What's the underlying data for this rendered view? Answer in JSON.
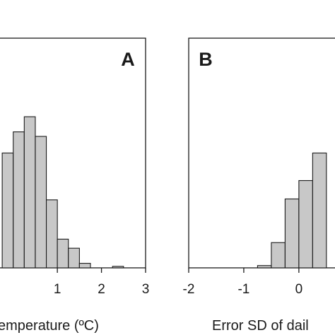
{
  "chart_data": [
    {
      "type": "bar",
      "panel_label": "A",
      "xlabel": "emperature (ºC)",
      "x_ticks": [
        "1",
        "2",
        "3"
      ],
      "x_tick_values": [
        1,
        2,
        3
      ],
      "bin_width": 0.25,
      "bin_starts": [
        -0.25,
        0.0,
        0.25,
        0.5,
        0.75,
        1.0,
        1.25,
        1.5,
        1.75,
        2.0,
        2.25,
        2.5
      ],
      "values": [
        76,
        90,
        100,
        87,
        45,
        19,
        13,
        3,
        0,
        0,
        1,
        0
      ],
      "xlim": [
        -0.3,
        3.0
      ],
      "ylim": [
        0,
        152
      ],
      "bar_color": "#c8c8c8",
      "grid": false
    },
    {
      "type": "bar",
      "panel_label": "B",
      "xlabel": "Error SD of dail",
      "x_ticks": [
        "-2",
        "-1",
        "0"
      ],
      "x_tick_values": [
        -2,
        -1,
        0
      ],
      "bin_width": 0.25,
      "bin_starts": [
        -1.0,
        -0.75,
        -0.5,
        -0.25,
        0.0,
        0.25
      ],
      "values": [
        0,
        1,
        11,
        30,
        38,
        50
      ],
      "xlim": [
        -2.0,
        0.72
      ],
      "ylim": [
        0,
        100
      ],
      "bar_color": "#c8c8c8",
      "grid": false
    }
  ]
}
